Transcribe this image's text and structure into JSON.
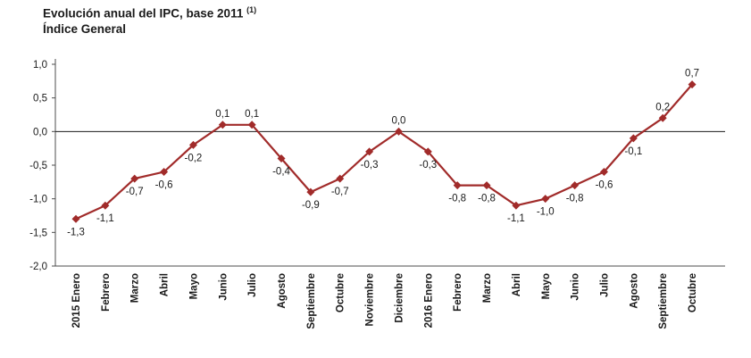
{
  "title": {
    "text": "Evolución anual del IPC, base 2011",
    "note": "(1)",
    "subtitle": "Índice General"
  },
  "chart_data": {
    "type": "line",
    "title": "Evolución anual del IPC, base 2011 (1)",
    "subtitle": "Índice General",
    "xlabel": "",
    "ylabel": "",
    "grid": false,
    "legend": "none",
    "categories": [
      "2015 Enero",
      "Febrero",
      "Marzo",
      "Abril",
      "Mayo",
      "Junio",
      "Julio",
      "Agosto",
      "Septiembre",
      "Octubre",
      "Noviembre",
      "Diciembre",
      "2016 Enero",
      "Febrero",
      "Marzo",
      "Abril",
      "Mayo",
      "Junio",
      "Julio",
      "Agosto",
      "Septiembre",
      "Octubre"
    ],
    "values": [
      -1.3,
      -1.1,
      -0.7,
      -0.6,
      -0.2,
      0.1,
      0.1,
      -0.4,
      -0.9,
      -0.7,
      -0.3,
      0.0,
      -0.3,
      -0.8,
      -0.8,
      -1.1,
      -1.0,
      -0.8,
      -0.6,
      -0.1,
      0.2,
      0.7
    ],
    "point_labels": [
      "-1,3",
      "-1,1",
      "-0,7",
      "-0,6",
      "-0,2",
      "0,1",
      "0,1",
      "-0,4",
      "-0,9",
      "-0,7",
      "-0,3",
      "0,0",
      "-0,3",
      "-0,8",
      "-0,8",
      "-1,1",
      "-1,0",
      "-0,8",
      "-0,6",
      "-0,1",
      "0,2",
      "0,7"
    ],
    "y_ticks": {
      "labels": [
        "1,0",
        "0,5",
        "0,0",
        "-0,5",
        "-1,0",
        "-1,5",
        "-2,0"
      ],
      "values": [
        1.0,
        0.5,
        0.0,
        -0.5,
        -1.0,
        -1.5,
        -2.0
      ]
    },
    "ylim": [
      -2.0,
      1.0
    ],
    "colors": {
      "line": "#a12b2a",
      "marker": "#a12b2a",
      "axis": "#4d4d4d",
      "zero_line": "#1a1a1a",
      "text": "#1a1a1a"
    }
  }
}
